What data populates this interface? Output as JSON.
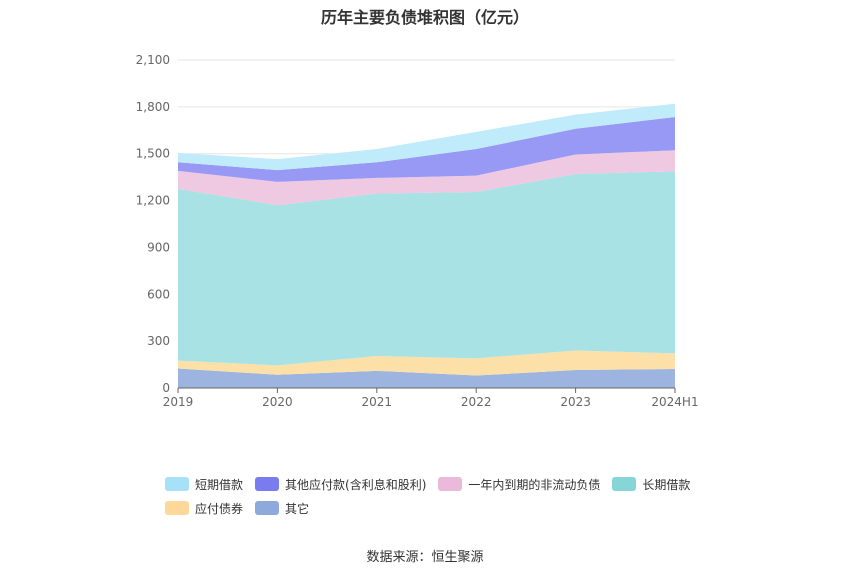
{
  "source": "数据来源：恒生聚源",
  "chart_data": {
    "type": "area",
    "stacked": true,
    "title": "历年主要负债堆积图（亿元）",
    "categories": [
      "2019",
      "2020",
      "2021",
      "2022",
      "2023",
      "2024H1"
    ],
    "ylim": [
      0,
      2100
    ],
    "yticks": [
      "0",
      "300",
      "600",
      "900",
      "1,200",
      "1,500",
      "1,800",
      "2,100"
    ],
    "grid": true,
    "legend_position": "bottom",
    "series": [
      {
        "name": "其它",
        "color": "#9db4e0",
        "values": [
          125,
          85,
          110,
          80,
          115,
          122
        ]
      },
      {
        "name": "应付债券",
        "color": "#fde0a8",
        "values": [
          50,
          60,
          95,
          110,
          125,
          100
        ]
      },
      {
        "name": "长期借款",
        "color": "#a8e2e4",
        "values": [
          1100,
          1025,
          1040,
          1065,
          1130,
          1165
        ]
      },
      {
        "name": "一年内到期的非流动负债",
        "color": "#efc8e2",
        "values": [
          115,
          150,
          100,
          105,
          125,
          135
        ]
      },
      {
        "name": "其他应付款(含利息和股利)",
        "color": "#9898f5",
        "values": [
          55,
          75,
          100,
          170,
          165,
          213
        ]
      },
      {
        "name": "短期借款",
        "color": "#c0ebfa",
        "values": [
          60,
          70,
          85,
          110,
          90,
          85
        ]
      }
    ]
  },
  "legend": {
    "rows": [
      [
        {
          "label": "短期借款",
          "color": "#a6e1f8"
        },
        {
          "label": "其他应付款(含利息和股利)",
          "color": "#7b7bf0"
        },
        {
          "label": "一年内到期的非流动负债",
          "color": "#ebbadb"
        },
        {
          "label": "长期借款",
          "color": "#86d6d8"
        }
      ],
      [
        {
          "label": "应付债券",
          "color": "#fdd89a"
        },
        {
          "label": "其它",
          "color": "#8eaadc"
        }
      ]
    ]
  }
}
